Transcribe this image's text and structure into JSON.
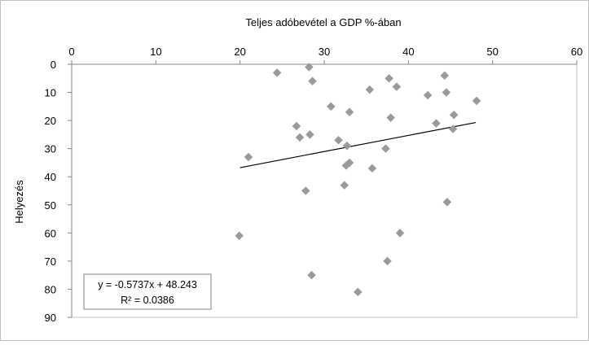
{
  "chart_data": {
    "type": "scatter",
    "title": "",
    "xlabel": "Teljes adóbevétel a GDP %-ában",
    "ylabel": "Helyezés",
    "x_axis_position": "top",
    "y_axis_reversed": true,
    "xlim": [
      0,
      60
    ],
    "ylim": [
      0,
      90
    ],
    "x_ticks": [
      "0",
      "10",
      "20",
      "30",
      "40",
      "50",
      "60"
    ],
    "y_ticks": [
      "0",
      "10",
      "20",
      "30",
      "40",
      "50",
      "60",
      "70",
      "80",
      "90"
    ],
    "grid": false,
    "series": [
      {
        "marker": "diamond",
        "color": "#9a9a9a",
        "points": [
          {
            "x": 24.4,
            "y": 3
          },
          {
            "x": 28.2,
            "y": 1
          },
          {
            "x": 28.6,
            "y": 6
          },
          {
            "x": 44.3,
            "y": 4
          },
          {
            "x": 37.7,
            "y": 5
          },
          {
            "x": 38.6,
            "y": 8
          },
          {
            "x": 35.4,
            "y": 9
          },
          {
            "x": 44.5,
            "y": 10
          },
          {
            "x": 42.3,
            "y": 11
          },
          {
            "x": 48.1,
            "y": 13
          },
          {
            "x": 30.8,
            "y": 15
          },
          {
            "x": 33.0,
            "y": 17
          },
          {
            "x": 45.4,
            "y": 18
          },
          {
            "x": 37.9,
            "y": 19
          },
          {
            "x": 43.3,
            "y": 21
          },
          {
            "x": 26.7,
            "y": 22
          },
          {
            "x": 45.3,
            "y": 23
          },
          {
            "x": 28.3,
            "y": 25
          },
          {
            "x": 27.1,
            "y": 26
          },
          {
            "x": 31.7,
            "y": 27
          },
          {
            "x": 32.7,
            "y": 29
          },
          {
            "x": 37.3,
            "y": 30
          },
          {
            "x": 21.0,
            "y": 33
          },
          {
            "x": 33.0,
            "y": 35
          },
          {
            "x": 32.6,
            "y": 36
          },
          {
            "x": 35.7,
            "y": 37
          },
          {
            "x": 32.4,
            "y": 43
          },
          {
            "x": 27.8,
            "y": 45
          },
          {
            "x": 44.6,
            "y": 49
          },
          {
            "x": 39.0,
            "y": 60
          },
          {
            "x": 19.9,
            "y": 61
          },
          {
            "x": 37.5,
            "y": 70
          },
          {
            "x": 28.5,
            "y": 75
          },
          {
            "x": 34.0,
            "y": 81
          }
        ]
      }
    ],
    "trendline": {
      "type": "linear",
      "slope": -0.5737,
      "intercept": 48.243,
      "x_range": [
        20,
        48
      ],
      "color": "#000000"
    },
    "annotation": {
      "equation": "y = -0.5737x + 48.243",
      "r_squared": "R² = 0.0386"
    }
  }
}
